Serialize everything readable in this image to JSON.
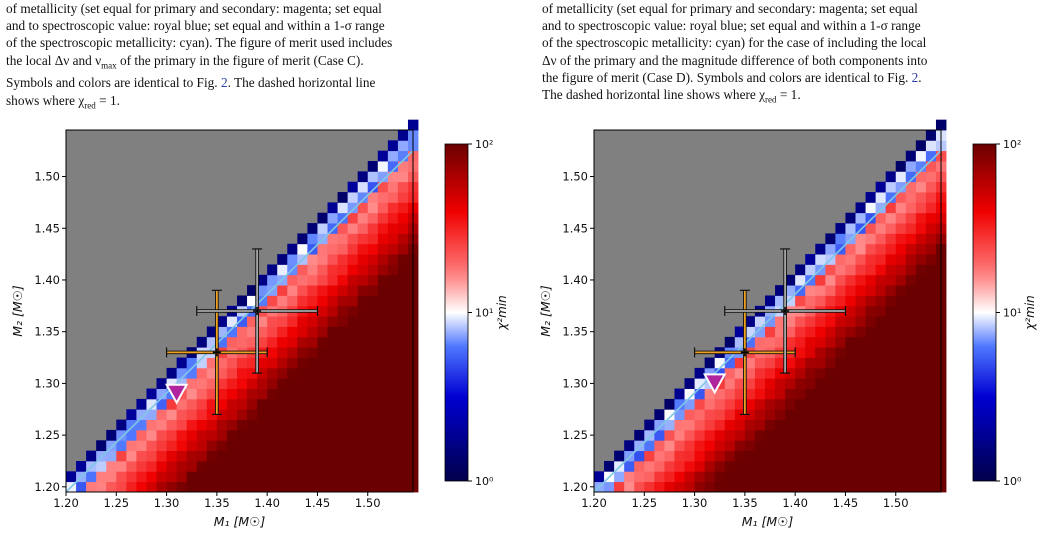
{
  "captions": {
    "left": {
      "line1": "of metallicity (set equal for primary and secondary: magenta; set equal",
      "line2": "and to spectroscopic value: royal blue; set equal and within a 1-σ range",
      "line3": "of the spectroscopic metallicity: cyan). The figure of merit used includes",
      "line4_a": "the local Δν and ν",
      "line4_sub": "max",
      "line4_b": " of the primary in the figure of merit (Case C).",
      "line5_a": "Symbols and colors are identical to Fig. ",
      "line5_ref": "2",
      "line5_b": ". The dashed horizontal line",
      "line6_a": "shows where χ",
      "line6_sub": "red",
      "line6_b": " = 1."
    },
    "right": {
      "line1": "of metallicity (set equal for primary and secondary: magenta; set equal",
      "line2": "and to spectroscopic value: royal blue; set equal and within a 1-σ range",
      "line3": "of the spectroscopic metallicity: cyan) for the case of including the local",
      "line4": "Δν of the primary and the magnitude difference of both components into",
      "line5_a": "the figure of merit (Case D). Symbols and colors are identical to Fig. ",
      "line5_ref": "2",
      "line5_b": ".",
      "line6_a": "The dashed horizontal line shows where χ",
      "line6_sub": "red",
      "line6_b": " = 1."
    }
  },
  "colors": {
    "background": "#808080",
    "cmap_low": "#00004a",
    "cmap_mid": "#ffffff",
    "cmap_high": "#6b0000",
    "diag_line": "#7ec8e3",
    "marker": "#b0249e",
    "orange": "#f0a020",
    "gray_bar": "#a8a8a8"
  },
  "chart_data": [
    {
      "type": "heatmap",
      "panel": "left",
      "xlabel": "M₁ [M☉]",
      "ylabel": "M₂ [M☉]",
      "colorbar_label": "χ²min",
      "colorbar_ticks": [
        "10⁰",
        "10¹",
        "10²"
      ],
      "colorbar_range": [
        1,
        100
      ],
      "xlim": [
        1.2,
        1.545
      ],
      "ylim": [
        1.195,
        1.545
      ],
      "xticks": [
        "1.20",
        "1.25",
        "1.30",
        "1.35",
        "1.40",
        "1.45",
        "1.50"
      ],
      "yticks": [
        "1.20",
        "1.25",
        "1.30",
        "1.35",
        "1.40",
        "1.45",
        "1.50"
      ],
      "grid_step": 0.01,
      "best_fit_marker": {
        "x": 1.31,
        "y": 1.29
      },
      "error_bars": [
        {
          "label": "orange",
          "x": 1.35,
          "y": 1.33,
          "xerr": [
            1.3,
            1.4
          ],
          "yerr": [
            1.27,
            1.39
          ]
        },
        {
          "label": "gray",
          "x": 1.39,
          "y": 1.37,
          "xerr": [
            1.33,
            1.45
          ],
          "yerr": [
            1.31,
            1.43
          ]
        }
      ],
      "diagonal_line": {
        "x": [
          1.2,
          1.545
        ],
        "y": [
          1.195,
          1.525
        ]
      }
    },
    {
      "type": "heatmap",
      "panel": "right",
      "xlabel": "M₁ [M☉]",
      "ylabel": "M₂ [M☉]",
      "colorbar_label": "χ²min",
      "colorbar_ticks": [
        "10⁰",
        "10¹",
        "10²"
      ],
      "colorbar_range": [
        1,
        100
      ],
      "xlim": [
        1.2,
        1.545
      ],
      "ylim": [
        1.195,
        1.545
      ],
      "xticks": [
        "1.20",
        "1.25",
        "1.30",
        "1.35",
        "1.40",
        "1.45",
        "1.50"
      ],
      "yticks": [
        "1.20",
        "1.25",
        "1.30",
        "1.35",
        "1.40",
        "1.45",
        "1.50"
      ],
      "grid_step": 0.01,
      "best_fit_marker": {
        "x": 1.32,
        "y": 1.3
      },
      "error_bars": [
        {
          "label": "orange",
          "x": 1.35,
          "y": 1.33,
          "xerr": [
            1.3,
            1.4
          ],
          "yerr": [
            1.27,
            1.39
          ]
        },
        {
          "label": "gray",
          "x": 1.39,
          "y": 1.37,
          "xerr": [
            1.33,
            1.45
          ],
          "yerr": [
            1.31,
            1.43
          ]
        }
      ],
      "diagonal_line": {
        "x": [
          1.2,
          1.545
        ],
        "y": [
          1.195,
          1.525
        ]
      }
    }
  ]
}
